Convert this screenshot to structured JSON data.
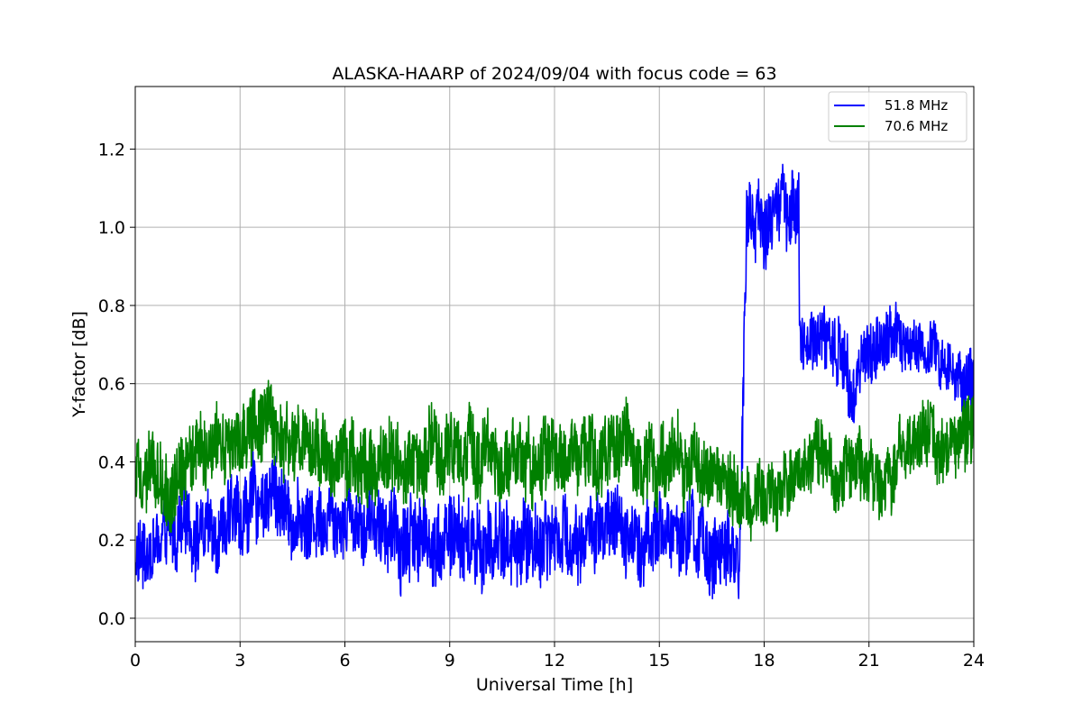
{
  "chart_data": {
    "type": "line",
    "title": "ALASKA-HAARP of 2024/09/04 with focus code = 63",
    "xlabel": "Universal Time [h]",
    "ylabel": "Y-factor [dB]",
    "xlim": [
      0,
      24
    ],
    "ylim": [
      -0.06,
      1.36
    ],
    "xticks": [
      0,
      3,
      6,
      9,
      12,
      15,
      18,
      21,
      24
    ],
    "xtick_labels": [
      "0",
      "3",
      "6",
      "9",
      "12",
      "15",
      "18",
      "21",
      "24"
    ],
    "yticks": [
      0.0,
      0.2,
      0.4,
      0.6,
      0.8,
      1.0,
      1.2
    ],
    "ytick_labels": [
      "0.0",
      "0.2",
      "0.4",
      "0.6",
      "0.8",
      "1.0",
      "1.2"
    ],
    "grid": true,
    "legend_position": "top-right",
    "series": [
      {
        "name": "51.8 MHz",
        "color": "#0000ff",
        "x": [
          0,
          0.5,
          1,
          1.5,
          2,
          2.5,
          3,
          3.5,
          4,
          4.5,
          5,
          5.5,
          6,
          6.5,
          7,
          7.5,
          8,
          8.5,
          9,
          9.5,
          10,
          10.5,
          11,
          11.5,
          12,
          12.5,
          13,
          13.5,
          14,
          14.5,
          15,
          15.5,
          16,
          16.5,
          17,
          17.3,
          17.5,
          18,
          18.5,
          18.99,
          19.01,
          19.5,
          20,
          20.5,
          21,
          21.5,
          22,
          22.5,
          23,
          23.5,
          24
        ],
        "y": [
          0.15,
          0.18,
          0.2,
          0.24,
          0.22,
          0.24,
          0.26,
          0.3,
          0.32,
          0.26,
          0.24,
          0.28,
          0.27,
          0.26,
          0.25,
          0.2,
          0.22,
          0.2,
          0.21,
          0.19,
          0.18,
          0.2,
          0.18,
          0.2,
          0.22,
          0.2,
          0.22,
          0.21,
          0.23,
          0.21,
          0.22,
          0.21,
          0.2,
          0.17,
          0.14,
          0.16,
          1.02,
          1.01,
          1.05,
          1.04,
          0.72,
          0.72,
          0.7,
          0.62,
          0.68,
          0.72,
          0.7,
          0.68,
          0.66,
          0.62,
          0.6
        ],
        "noise_amplitude": [
          0.08,
          0.08,
          0.08,
          0.09,
          0.09,
          0.09,
          0.09,
          0.09,
          0.1,
          0.08,
          0.09,
          0.09,
          0.09,
          0.09,
          0.09,
          0.1,
          0.1,
          0.1,
          0.1,
          0.1,
          0.1,
          0.1,
          0.1,
          0.1,
          0.09,
          0.09,
          0.09,
          0.09,
          0.09,
          0.09,
          0.09,
          0.09,
          0.09,
          0.1,
          0.09,
          0.09,
          0.09,
          0.09,
          0.1,
          0.09,
          0.07,
          0.07,
          0.08,
          0.09,
          0.08,
          0.08,
          0.07,
          0.07,
          0.07,
          0.07,
          0.09
        ]
      },
      {
        "name": "70.6 MHz",
        "color": "#008000",
        "x": [
          0,
          0.5,
          1,
          1.5,
          2,
          2.5,
          3,
          3.5,
          4,
          4.5,
          5,
          5.5,
          6,
          6.5,
          7,
          7.5,
          8,
          8.5,
          9,
          9.5,
          10,
          10.5,
          11,
          11.5,
          12,
          12.5,
          13,
          13.5,
          14,
          14.5,
          15,
          15.5,
          16,
          16.5,
          17,
          17.5,
          18,
          18.5,
          19,
          19.5,
          20,
          20.5,
          21,
          21.5,
          22,
          22.5,
          23,
          23.5,
          24
        ],
        "y": [
          0.4,
          0.38,
          0.35,
          0.42,
          0.45,
          0.47,
          0.47,
          0.48,
          0.46,
          0.44,
          0.43,
          0.4,
          0.42,
          0.41,
          0.39,
          0.41,
          0.42,
          0.44,
          0.43,
          0.41,
          0.42,
          0.41,
          0.42,
          0.4,
          0.39,
          0.4,
          0.41,
          0.42,
          0.43,
          0.41,
          0.42,
          0.41,
          0.4,
          0.36,
          0.33,
          0.3,
          0.3,
          0.33,
          0.38,
          0.4,
          0.38,
          0.4,
          0.33,
          0.38,
          0.42,
          0.46,
          0.44,
          0.44,
          0.5
        ],
        "noise_amplitude": [
          0.08,
          0.08,
          0.1,
          0.09,
          0.09,
          0.09,
          0.09,
          0.09,
          0.09,
          0.09,
          0.09,
          0.09,
          0.09,
          0.09,
          0.09,
          0.09,
          0.09,
          0.09,
          0.09,
          0.09,
          0.09,
          0.09,
          0.09,
          0.09,
          0.09,
          0.09,
          0.09,
          0.09,
          0.09,
          0.09,
          0.09,
          0.09,
          0.09,
          0.08,
          0.08,
          0.08,
          0.08,
          0.08,
          0.08,
          0.08,
          0.08,
          0.08,
          0.08,
          0.08,
          0.08,
          0.08,
          0.08,
          0.08,
          0.09
        ]
      }
    ]
  }
}
